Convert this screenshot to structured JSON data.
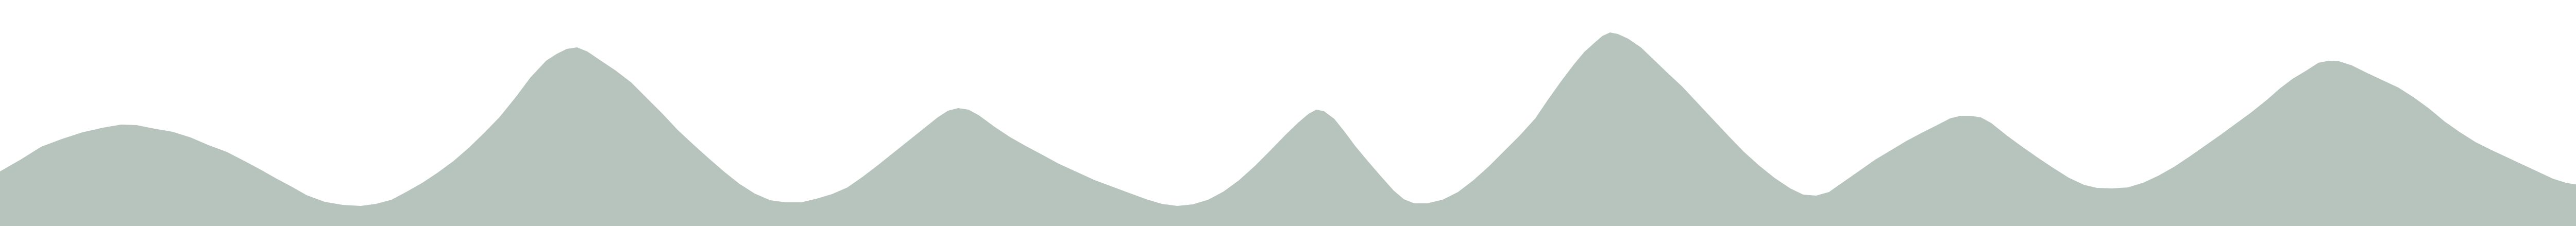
{
  "colors": {
    "background": "#ffffff",
    "mountain_fill": "#b7c4be"
  },
  "graphic": {
    "semantic_name": "mountain-range-silhouette"
  }
}
